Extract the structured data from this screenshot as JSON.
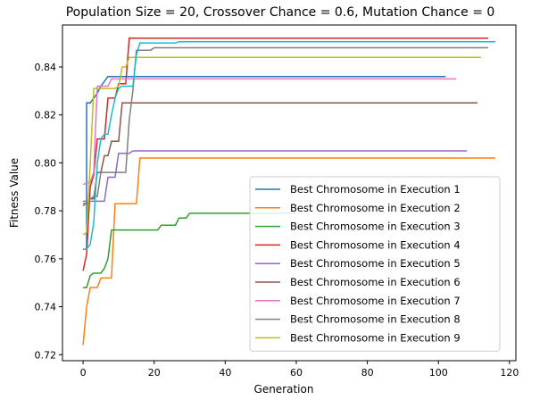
{
  "chart_data": {
    "type": "line",
    "title": "Population Size = 20, Crossover Chance = 0.6, Mutation Chance = 0",
    "xlabel": "Generation",
    "ylabel": "Fitness Value",
    "xlim": [
      -5.8,
      121.8
    ],
    "ylim": [
      0.7175,
      0.8575
    ],
    "xticks": [
      0,
      20,
      40,
      60,
      80,
      100,
      120
    ],
    "yticks": [
      0.72,
      0.74,
      0.76,
      0.78,
      0.8,
      0.82,
      0.84
    ],
    "xtick_labels": [
      "0",
      "20",
      "40",
      "60",
      "80",
      "100",
      "120"
    ],
    "ytick_labels": [
      "0.72",
      "0.74",
      "0.76",
      "0.78",
      "0.80",
      "0.82",
      "0.84"
    ],
    "grid": false,
    "legend_position": "lower right",
    "series": [
      {
        "name": "Best Chromosome in Execution 1",
        "color": "#1f77b4",
        "points": [
          [
            0,
            0.764
          ],
          [
            1,
            0.764
          ],
          [
            1,
            0.825
          ],
          [
            2,
            0.825
          ],
          [
            3,
            0.827
          ],
          [
            4,
            0.829
          ],
          [
            5,
            0.832
          ],
          [
            6,
            0.834
          ],
          [
            7,
            0.836
          ],
          [
            12,
            0.836
          ],
          [
            102,
            0.836
          ]
        ]
      },
      {
        "name": "Best Chromosome in Execution 2",
        "color": "#ff7f0e",
        "points": [
          [
            0,
            0.724
          ],
          [
            1,
            0.74
          ],
          [
            2,
            0.748
          ],
          [
            4,
            0.748
          ],
          [
            5,
            0.752
          ],
          [
            8,
            0.752
          ],
          [
            9,
            0.783
          ],
          [
            15,
            0.783
          ],
          [
            16,
            0.802
          ],
          [
            116,
            0.802
          ]
        ]
      },
      {
        "name": "Best Chromosome in Execution 3",
        "color": "#2ca02c",
        "points": [
          [
            0,
            0.748
          ],
          [
            1,
            0.748
          ],
          [
            2,
            0.753
          ],
          [
            3,
            0.754
          ],
          [
            5,
            0.754
          ],
          [
            6,
            0.756
          ],
          [
            7,
            0.76
          ],
          [
            8,
            0.772
          ],
          [
            21,
            0.772
          ],
          [
            22,
            0.774
          ],
          [
            26,
            0.774
          ],
          [
            27,
            0.777
          ],
          [
            29,
            0.777
          ],
          [
            30,
            0.779
          ],
          [
            60,
            0.779
          ]
        ]
      },
      {
        "name": "Best Chromosome in Execution 4",
        "color": "#d62728",
        "points": [
          [
            0,
            0.755
          ],
          [
            1,
            0.762
          ],
          [
            2,
            0.79
          ],
          [
            3,
            0.795
          ],
          [
            4,
            0.81
          ],
          [
            6,
            0.81
          ],
          [
            7,
            0.827
          ],
          [
            9,
            0.827
          ],
          [
            10,
            0.833
          ],
          [
            12,
            0.833
          ],
          [
            13,
            0.852
          ],
          [
            114,
            0.852
          ]
        ]
      },
      {
        "name": "Best Chromosome in Execution 5",
        "color": "#9467bd",
        "points": [
          [
            0,
            0.784
          ],
          [
            6,
            0.784
          ],
          [
            7,
            0.794
          ],
          [
            9,
            0.794
          ],
          [
            10,
            0.804
          ],
          [
            13,
            0.804
          ],
          [
            14,
            0.805
          ],
          [
            108,
            0.805
          ]
        ]
      },
      {
        "name": "Best Chromosome in Execution 6",
        "color": "#8c564b",
        "points": [
          [
            0,
            0.783
          ],
          [
            1,
            0.783
          ],
          [
            2,
            0.785
          ],
          [
            3,
            0.785
          ],
          [
            4,
            0.796
          ],
          [
            5,
            0.796
          ],
          [
            6,
            0.803
          ],
          [
            7,
            0.803
          ],
          [
            8,
            0.809
          ],
          [
            10,
            0.809
          ],
          [
            11,
            0.825
          ],
          [
            111,
            0.825
          ]
        ]
      },
      {
        "name": "Best Chromosome in Execution 7",
        "color": "#e377c2",
        "points": [
          [
            0,
            0.791
          ],
          [
            2,
            0.792
          ],
          [
            3,
            0.796
          ],
          [
            4,
            0.832
          ],
          [
            7,
            0.832
          ],
          [
            8,
            0.835
          ],
          [
            105,
            0.835
          ]
        ]
      },
      {
        "name": "Best Chromosome in Execution 8",
        "color": "#7f7f7f",
        "points": [
          [
            0,
            0.782
          ],
          [
            2,
            0.785
          ],
          [
            3,
            0.786
          ],
          [
            4,
            0.786
          ],
          [
            5,
            0.796
          ],
          [
            12,
            0.796
          ],
          [
            13,
            0.818
          ],
          [
            14,
            0.83
          ],
          [
            15,
            0.847
          ],
          [
            19,
            0.847
          ],
          [
            20,
            0.848
          ],
          [
            114,
            0.848
          ]
        ]
      },
      {
        "name": "Best Chromosome in Execution 9",
        "color": "#bcbd22",
        "points": [
          [
            0,
            0.77
          ],
          [
            1,
            0.771
          ],
          [
            2,
            0.799
          ],
          [
            3,
            0.831
          ],
          [
            9,
            0.831
          ],
          [
            10,
            0.832
          ],
          [
            11,
            0.84
          ],
          [
            12,
            0.84
          ],
          [
            13,
            0.844
          ],
          [
            112,
            0.844
          ]
        ]
      },
      {
        "name": "",
        "color": "#17becf",
        "points": [
          [
            0,
            0.764
          ],
          [
            1,
            0.764
          ],
          [
            2,
            0.766
          ],
          [
            3,
            0.775
          ],
          [
            4,
            0.8
          ],
          [
            5,
            0.81
          ],
          [
            6,
            0.812
          ],
          [
            7,
            0.812
          ],
          [
            8,
            0.82
          ],
          [
            9,
            0.827
          ],
          [
            10,
            0.831
          ],
          [
            11,
            0.832
          ],
          [
            14,
            0.832
          ],
          [
            15,
            0.845
          ],
          [
            16,
            0.85
          ],
          [
            26,
            0.85
          ],
          [
            27,
            0.8505
          ],
          [
            116,
            0.8505
          ]
        ]
      }
    ]
  }
}
